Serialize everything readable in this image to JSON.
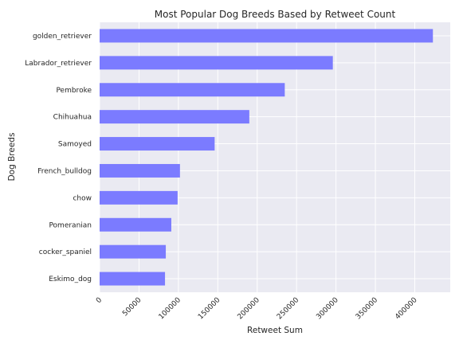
{
  "chart_data": {
    "type": "bar",
    "orientation": "horizontal",
    "title": "Most Popular Dog Breeds Based by Retweet Count",
    "xlabel": "Retweet Sum",
    "ylabel": "Dog Breeds",
    "categories": [
      "golden_retriever",
      "Labrador_retriever",
      "Pembroke",
      "Chihuahua",
      "Samoyed",
      "French_bulldog",
      "chow",
      "Pomeranian",
      "cocker_spaniel",
      "Eskimo_dog"
    ],
    "values": [
      423000,
      296000,
      235000,
      190000,
      146000,
      102000,
      99000,
      91000,
      84000,
      83000
    ],
    "xlim": [
      0,
      445000
    ],
    "xticks": [
      0,
      50000,
      100000,
      150000,
      200000,
      250000,
      300000,
      350000,
      400000
    ],
    "grid": true,
    "colors": {
      "bar": "#7b7bff",
      "background": "#eaeaf2",
      "grid": "#ffffff"
    }
  }
}
